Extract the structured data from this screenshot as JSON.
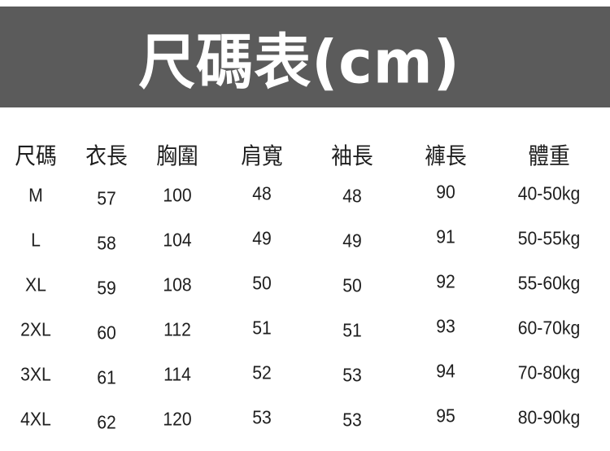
{
  "title": "尺碼表(cm)",
  "table": {
    "headers": [
      "尺碼",
      "衣長",
      "胸圍",
      "肩寬",
      "袖長",
      "褲長",
      "體重"
    ],
    "rows": [
      [
        "M",
        "57",
        "100",
        "48",
        "48",
        "90",
        "40-50kg"
      ],
      [
        "L",
        "58",
        "104",
        "49",
        "49",
        "91",
        "50-55kg"
      ],
      [
        "XL",
        "59",
        "108",
        "50",
        "50",
        "92",
        "55-60kg"
      ],
      [
        "2XL",
        "60",
        "112",
        "51",
        "51",
        "93",
        "60-70kg"
      ],
      [
        "3XL",
        "61",
        "114",
        "52",
        "53",
        "94",
        "70-80kg"
      ],
      [
        "4XL",
        "62",
        "120",
        "53",
        "53",
        "95",
        "80-90kg"
      ]
    ]
  },
  "colors": {
    "banner": "#5b5b5b",
    "title_text": "#ffffff",
    "text": "#1e1e1e"
  }
}
